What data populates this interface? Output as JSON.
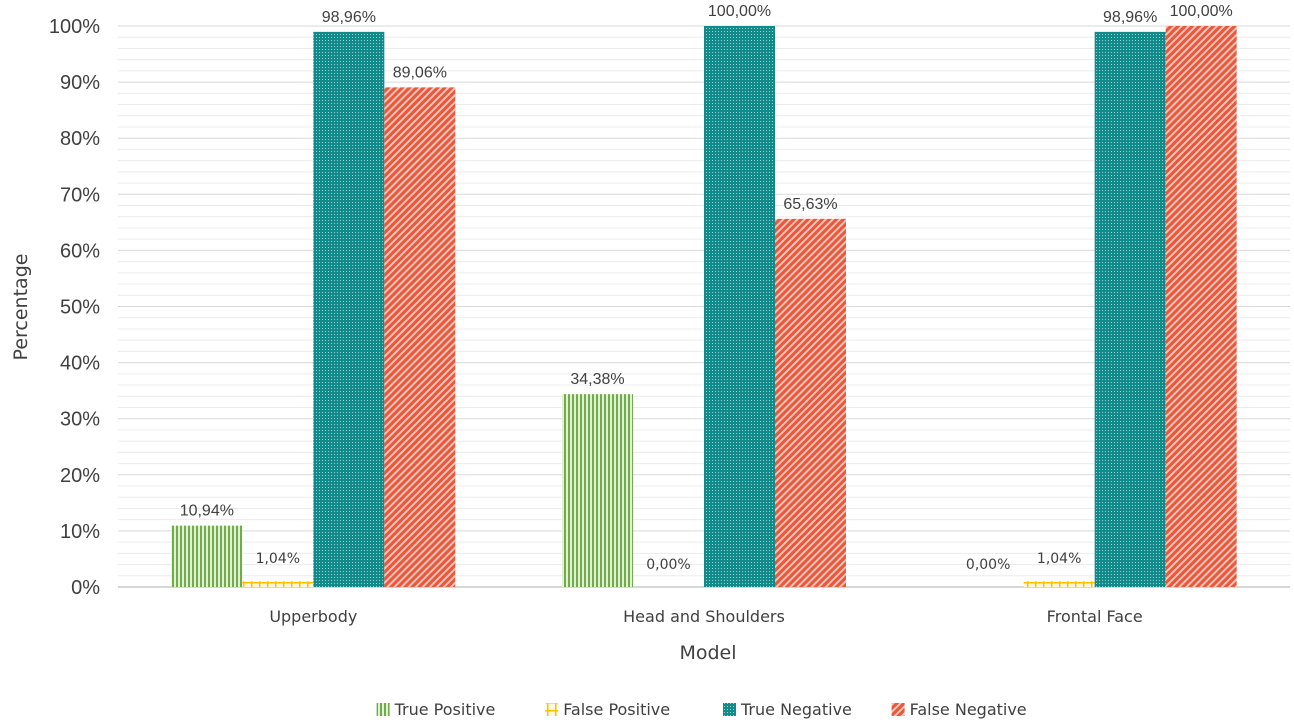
{
  "chart_data": {
    "type": "bar",
    "title": "",
    "xlabel": "Model",
    "ylabel": "Percentage",
    "ylim": [
      0,
      100
    ],
    "yticks": [
      "0%",
      "10%",
      "20%",
      "30%",
      "40%",
      "50%",
      "60%",
      "70%",
      "80%",
      "90%",
      "100%"
    ],
    "grid": true,
    "legend_position": "bottom",
    "categories": [
      "Upperbody",
      "Head and Shoulders",
      "Frontal Face"
    ],
    "series": [
      {
        "name": "True Positive",
        "values": [
          10.94,
          34.38,
          0.0
        ],
        "labels": [
          "10,94%",
          "34,38%",
          "0,00%"
        ],
        "color": "#70ad47",
        "pattern": "vertical-stripes"
      },
      {
        "name": "False Positive",
        "values": [
          1.04,
          0.0,
          1.04
        ],
        "labels": [
          "1,04%",
          "0,00%",
          "1,04%"
        ],
        "color": "#ffc000",
        "pattern": "dashed-cross"
      },
      {
        "name": "True Negative",
        "values": [
          98.96,
          100.0,
          98.96
        ],
        "labels": [
          "98,96%",
          "100,00%",
          "98,96%"
        ],
        "color": "#138a8a",
        "pattern": "dotted"
      },
      {
        "name": "False Negative",
        "values": [
          89.06,
          65.63,
          100.0
        ],
        "labels": [
          "89,06%",
          "65,63%",
          "100,00%"
        ],
        "color": "#e8583c",
        "pattern": "diagonal-stripes"
      }
    ]
  }
}
